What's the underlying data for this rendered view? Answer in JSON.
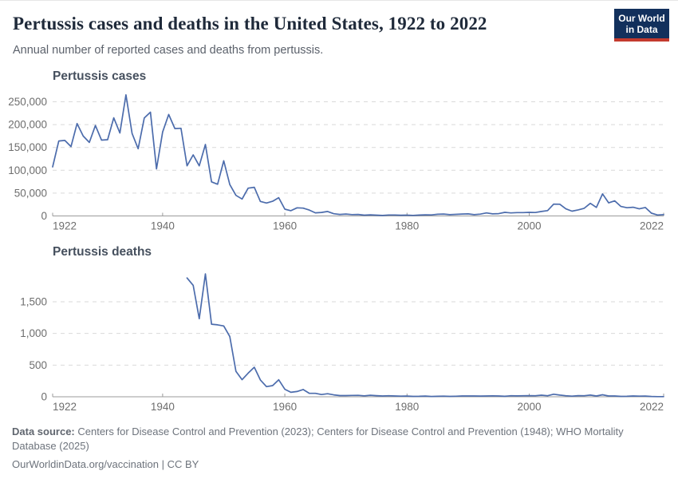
{
  "header": {
    "title": "Pertussis cases and deaths in the United States, 1922 to 2022",
    "subtitle": "Annual number of reported cases and deaths from pertussis.",
    "logo": {
      "line1": "Our World",
      "line2": "in Data",
      "bg_color": "#12305c",
      "accent_color": "#c33a2e"
    }
  },
  "colors": {
    "line": "#4c6cac",
    "grid": "#d9d9d9",
    "axis": "#9b9b9b",
    "tick_text": "#6e6e6e",
    "facet_title": "#46505e",
    "title_text": "#1f2a3a"
  },
  "chart_data": [
    {
      "type": "line",
      "title": "Pertussis cases",
      "xlabel": "",
      "ylabel": "",
      "x_axis_range": [
        1922,
        2022
      ],
      "ylim": [
        0,
        265269
      ],
      "yticks": [
        0,
        50000,
        100000,
        150000,
        200000,
        250000
      ],
      "xticks": [
        1922,
        1940,
        1960,
        1980,
        2000,
        2022
      ],
      "grid": "dashed-horizontal",
      "legend": "none",
      "line_color": "#4c6cac",
      "x": [
        1922,
        1923,
        1924,
        1925,
        1926,
        1927,
        1928,
        1929,
        1930,
        1931,
        1932,
        1933,
        1934,
        1935,
        1936,
        1937,
        1938,
        1939,
        1940,
        1941,
        1942,
        1943,
        1944,
        1945,
        1946,
        1947,
        1948,
        1949,
        1950,
        1951,
        1952,
        1953,
        1954,
        1955,
        1956,
        1957,
        1958,
        1959,
        1960,
        1961,
        1962,
        1963,
        1964,
        1965,
        1966,
        1967,
        1968,
        1969,
        1970,
        1971,
        1972,
        1973,
        1974,
        1975,
        1976,
        1977,
        1978,
        1979,
        1980,
        1981,
        1982,
        1983,
        1984,
        1985,
        1986,
        1987,
        1988,
        1989,
        1990,
        1991,
        1992,
        1993,
        1994,
        1995,
        1996,
        1997,
        1998,
        1999,
        2000,
        2001,
        2002,
        2003,
        2004,
        2005,
        2006,
        2007,
        2008,
        2009,
        2010,
        2011,
        2012,
        2013,
        2014,
        2015,
        2016,
        2017,
        2018,
        2019,
        2020,
        2021,
        2022
      ],
      "values": [
        107473,
        164191,
        165418,
        152003,
        202210,
        175000,
        161000,
        198000,
        166000,
        167000,
        214870,
        181714,
        265269,
        180518,
        147237,
        214652,
        227319,
        103188,
        183866,
        222202,
        191383,
        191890,
        109873,
        133792,
        109860,
        156517,
        74715,
        69479,
        120718,
        68687,
        45030,
        37129,
        60886,
        62786,
        31732,
        28295,
        32148,
        40005,
        14809,
        11468,
        17749,
        17135,
        13005,
        6799,
        7717,
        9718,
        4810,
        3285,
        4249,
        3036,
        3287,
        1759,
        2402,
        1738,
        1010,
        2177,
        2063,
        1623,
        1730,
        1248,
        1895,
        2463,
        2276,
        3589,
        4195,
        2823,
        3450,
        4157,
        4570,
        2719,
        4083,
        6586,
        4617,
        5137,
        7796,
        6564,
        7405,
        7298,
        7867,
        7580,
        9771,
        11647,
        25827,
        25616,
        15632,
        10454,
        13278,
        16858,
        27550,
        18719,
        48277,
        28639,
        32971,
        20762,
        17972,
        18975,
        15609,
        18617,
        6124,
        2116,
        3044
      ]
    },
    {
      "type": "line",
      "title": "Pertussis deaths",
      "xlabel": "",
      "ylabel": "",
      "x_axis_range": [
        1922,
        2022
      ],
      "ylim": [
        0,
        1940
      ],
      "yticks": [
        0,
        500,
        1000,
        1500
      ],
      "xticks": [
        1922,
        1940,
        1960,
        1980,
        2000,
        2022
      ],
      "grid": "dashed-horizontal",
      "legend": "none",
      "line_color": "#4c6cac",
      "x": [
        1944,
        1945,
        1946,
        1947,
        1948,
        1949,
        1950,
        1951,
        1952,
        1953,
        1954,
        1955,
        1956,
        1957,
        1958,
        1959,
        1960,
        1961,
        1962,
        1963,
        1964,
        1965,
        1966,
        1967,
        1968,
        1969,
        1970,
        1971,
        1972,
        1973,
        1974,
        1975,
        1976,
        1977,
        1978,
        1979,
        1980,
        1981,
        1982,
        1983,
        1984,
        1985,
        1986,
        1987,
        1988,
        1989,
        1990,
        1991,
        1992,
        1993,
        1994,
        1995,
        1996,
        1997,
        1998,
        1999,
        2000,
        2001,
        2002,
        2003,
        2004,
        2005,
        2006,
        2007,
        2008,
        2009,
        2010,
        2011,
        2012,
        2013,
        2014,
        2015,
        2016,
        2017,
        2018,
        2019,
        2020,
        2021,
        2022
      ],
      "values": [
        1876,
        1760,
        1233,
        1940,
        1146,
        1136,
        1118,
        951,
        402,
        270,
        373,
        467,
        266,
        160,
        177,
        269,
        118,
        70,
        83,
        115,
        56,
        54,
        35,
        48,
        30,
        19,
        19,
        22,
        23,
        15,
        24,
        18,
        13,
        16,
        12,
        10,
        11,
        6,
        8,
        11,
        5,
        8,
        10,
        6,
        9,
        12,
        12,
        12,
        11,
        13,
        15,
        12,
        8,
        17,
        14,
        17,
        18,
        17,
        25,
        16,
        40,
        27,
        16,
        10,
        18,
        17,
        26,
        13,
        32,
        13,
        13,
        6,
        7,
        13,
        10,
        11,
        5,
        2,
        3
      ]
    }
  ],
  "footer": {
    "datasource_label": "Data source:",
    "datasource_text": " Centers for Disease Control and Prevention (2023); Centers for Disease Control and Prevention (1948); WHO Mortality Database (2025)",
    "citation": "OurWorldinData.org/vaccination | CC BY"
  }
}
